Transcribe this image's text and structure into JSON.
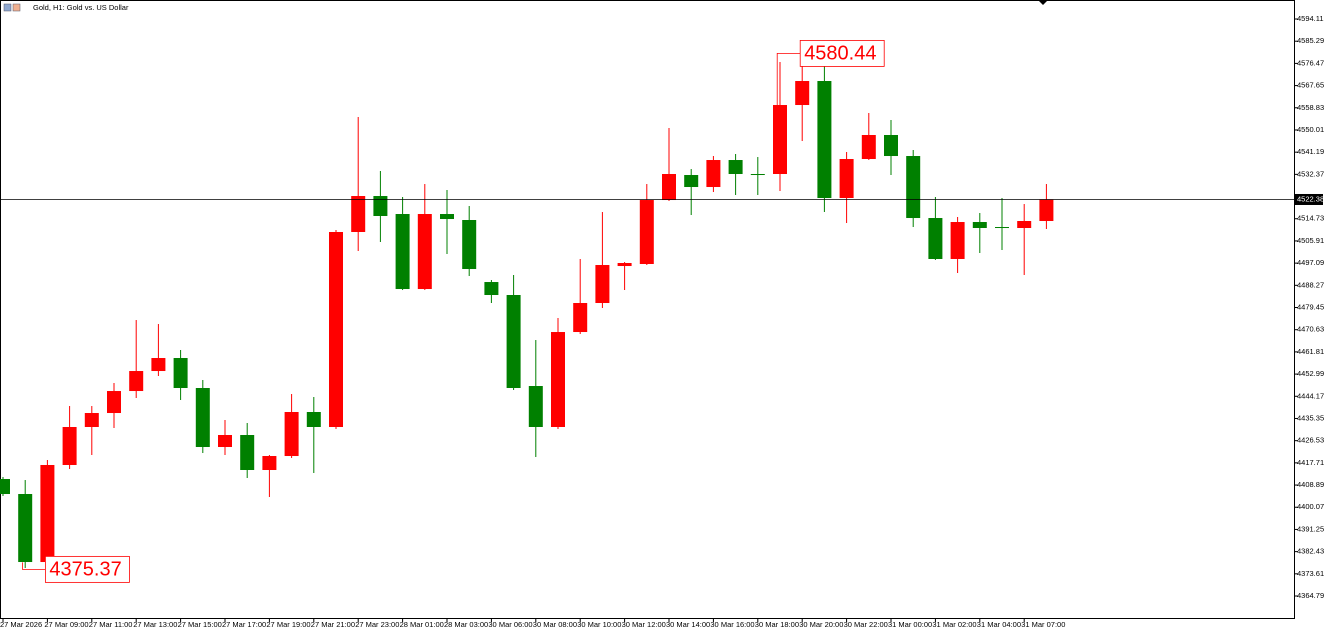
{
  "chart_data": {
    "type": "candlestick",
    "title": "Gold, H1: Gold vs. US Dollar",
    "categories": [
      "27 Mar 2026",
      null,
      "27 Mar 09:00",
      null,
      "27 Mar 11:00",
      null,
      "27 Mar 13:00",
      null,
      "27 Mar 15:00",
      null,
      "27 Mar 17:00",
      null,
      "27 Mar 19:00",
      null,
      "27 Mar 21:00",
      null,
      "27 Mar 23:00",
      null,
      "28 Mar 01:00",
      null,
      "28 Mar 03:00",
      null,
      "30 Mar 06:00",
      null,
      "30 Mar 08:00",
      null,
      "30 Mar 10:00",
      null,
      "30 Mar 12:00",
      null,
      "30 Mar 14:00",
      null,
      "30 Mar 16:00",
      null,
      "30 Mar 18:00",
      null,
      "30 Mar 20:00",
      null,
      "30 Mar 22:00",
      null,
      "31 Mar 00:00",
      null,
      "31 Mar 02:00",
      null,
      "31 Mar 04:00",
      null,
      "31 Mar 07:00",
      null
    ],
    "open": [
      4411.29,
      4405.33,
      4378.3,
      4416.86,
      4431.96,
      4437.52,
      4446.26,
      4454.21,
      4459.38,
      4447.46,
      4424.01,
      4428.78,
      4414.87,
      4420.43,
      4437.92,
      4431.96,
      4509.46,
      4523.76,
      4516.61,
      4486.8,
      4516.61,
      4514.23,
      4489.58,
      4484.42,
      4448.25,
      4431.96,
      4469.71,
      4481.24,
      4495.94,
      4496.74,
      4522.17,
      4532.11,
      4527.34,
      4538.07,
      4532.51,
      4532.51,
      4559.93,
      4569.47,
      4522.97,
      4538.47,
      4548.01,
      4539.66,
      4515.02,
      4498.73,
      4513.43,
      4511.44,
      4511.05,
      4513.83
    ],
    "high": [
      4412.09,
      4410.89,
      4418.84,
      4440.3,
      4440.3,
      4449.44,
      4474.48,
      4472.89,
      4462.56,
      4450.64,
      4434.74,
      4433.55,
      4420.83,
      4445.07,
      4443.88,
      4510.25,
      4555.16,
      4533.7,
      4523.37,
      4528.53,
      4526.15,
      4519.79,
      4490.38,
      4492.37,
      4466.53,
      4475.28,
      4498.73,
      4517.4,
      4497.53,
      4528.53,
      4550.79,
      4534.49,
      4539.66,
      4540.46,
      4539.26,
      4577.02,
      4580.44,
      4575.83,
      4541.25,
      4556.75,
      4553.97,
      4542.05,
      4523.37,
      4515.42,
      4517.01,
      4522.97,
      4520.58,
      4528.53
    ],
    "low": [
      4404.53,
      4375.92,
      4375.37,
      4415.27,
      4420.83,
      4431.56,
      4443.48,
      4452.23,
      4442.69,
      4421.62,
      4420.83,
      4411.69,
      4404.14,
      4419.64,
      4413.68,
      4431.16,
      4501.91,
      4505.48,
      4486.4,
      4486.4,
      4500.71,
      4491.97,
      4481.24,
      4446.66,
      4420.03,
      4431.16,
      4468.92,
      4479.25,
      4486.41,
      4496.34,
      4521.77,
      4516.21,
      4525.35,
      4524.16,
      4524.16,
      4525.75,
      4545.62,
      4517.4,
      4513.03,
      4538.07,
      4532.11,
      4511.44,
      4498.33,
      4493.16,
      4501.11,
      4502.3,
      4492.37,
      4510.65
    ],
    "close": [
      4405.33,
      4378.3,
      4416.86,
      4431.96,
      4437.52,
      4446.26,
      4454.21,
      4459.38,
      4447.46,
      4424.01,
      4428.78,
      4414.87,
      4420.43,
      4437.92,
      4431.96,
      4509.46,
      4523.76,
      4515.82,
      4486.8,
      4516.61,
      4514.62,
      4494.75,
      4484.42,
      4447.46,
      4431.96,
      4469.71,
      4481.24,
      4496.34,
      4497.14,
      4522.17,
      4532.51,
      4527.34,
      4538.07,
      4532.51,
      4532.11,
      4559.93,
      4569.47,
      4522.97,
      4538.47,
      4548.01,
      4539.66,
      4515.02,
      4498.73,
      4513.43,
      4511.05,
      4511.05,
      4513.83,
      4522.38
    ],
    "up_color": "#ff0000",
    "down_color": "#008000",
    "current_price": 4522.38,
    "ylim": [
      4356.05,
      4600.87
    ],
    "yticks": [
      4594.11,
      4585.29,
      4576.47,
      4567.65,
      4558.83,
      4550.01,
      4541.19,
      4532.37,
      4514.73,
      4505.91,
      4497.09,
      4488.27,
      4479.45,
      4470.63,
      4461.81,
      4452.99,
      4444.17,
      4435.35,
      4426.53,
      4417.71,
      4408.89,
      4400.07,
      4391.25,
      4382.43,
      4373.61,
      4364.79
    ],
    "grid": false
  }
}
